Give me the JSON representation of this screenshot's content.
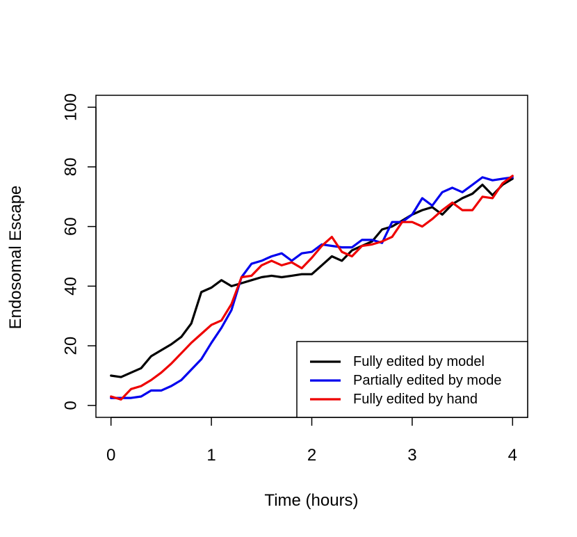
{
  "chart_data": {
    "type": "line",
    "title": "",
    "xlabel": "Time (hours)",
    "ylabel": "Endosomal Escape",
    "xlim": [
      -0.15,
      4.15
    ],
    "ylim": [
      -4,
      104
    ],
    "xticks": [
      0,
      1,
      2,
      3,
      4
    ],
    "yticks": [
      0,
      20,
      40,
      60,
      80,
      100
    ],
    "grid": false,
    "legend_position": "bottom-right",
    "series": [
      {
        "name": "Fully edited by model",
        "color": "#000000",
        "x": [
          0,
          0.1,
          0.2,
          0.3,
          0.4,
          0.5,
          0.6,
          0.7,
          0.8,
          0.9,
          1.0,
          1.1,
          1.2,
          1.3,
          1.4,
          1.5,
          1.6,
          1.7,
          1.8,
          1.9,
          2.0,
          2.1,
          2.2,
          2.3,
          2.4,
          2.5,
          2.6,
          2.7,
          2.8,
          2.9,
          3.0,
          3.1,
          3.2,
          3.3,
          3.4,
          3.5,
          3.6,
          3.7,
          3.8,
          3.9,
          4.0
        ],
        "y": [
          10,
          9.5,
          11,
          12.5,
          16.5,
          18.5,
          20.5,
          23,
          27.5,
          38,
          39.5,
          42,
          40,
          41,
          42,
          43,
          43.5,
          43,
          43.5,
          44,
          44,
          47,
          50,
          48.5,
          52,
          53.5,
          55,
          59,
          60,
          62,
          64,
          65.5,
          66.5,
          64,
          67.5,
          69.5,
          71,
          74,
          70.5,
          74,
          76
        ]
      },
      {
        "name": "Partially edited by mode",
        "color": "#0000ee",
        "x": [
          0,
          0.1,
          0.2,
          0.3,
          0.4,
          0.5,
          0.6,
          0.7,
          0.8,
          0.9,
          1.0,
          1.1,
          1.2,
          1.3,
          1.4,
          1.5,
          1.6,
          1.7,
          1.8,
          1.9,
          2.0,
          2.1,
          2.2,
          2.3,
          2.4,
          2.5,
          2.6,
          2.7,
          2.8,
          2.9,
          3.0,
          3.1,
          3.2,
          3.3,
          3.4,
          3.5,
          3.6,
          3.7,
          3.8,
          3.9,
          4.0
        ],
        "y": [
          2.5,
          2.5,
          2.5,
          3,
          5,
          5,
          6.5,
          8.5,
          12,
          15.5,
          21,
          26,
          32,
          43,
          47.5,
          48.5,
          50,
          51,
          48.5,
          51,
          51.5,
          54,
          53.5,
          53,
          53,
          55.5,
          55.5,
          54.5,
          61.5,
          61.5,
          64,
          69.5,
          67,
          71.5,
          73,
          71.5,
          74,
          76.5,
          75.5,
          76,
          76.5
        ]
      },
      {
        "name": "Fully edited by hand",
        "color": "#ee0000",
        "x": [
          0,
          0.1,
          0.2,
          0.3,
          0.4,
          0.5,
          0.6,
          0.7,
          0.8,
          0.9,
          1.0,
          1.1,
          1.2,
          1.3,
          1.4,
          1.5,
          1.6,
          1.7,
          1.8,
          1.9,
          2.0,
          2.1,
          2.2,
          2.3,
          2.4,
          2.5,
          2.6,
          2.7,
          2.8,
          2.9,
          3.0,
          3.1,
          3.2,
          3.3,
          3.4,
          3.5,
          3.6,
          3.7,
          3.8,
          3.9,
          4.0
        ],
        "y": [
          3,
          2,
          5.5,
          6.5,
          8.5,
          11,
          14,
          17.5,
          21,
          24,
          27,
          28.5,
          34,
          43,
          43.5,
          47,
          48.5,
          47,
          48,
          46,
          49.5,
          53.5,
          56.5,
          51.5,
          50,
          53.5,
          54,
          55,
          56.5,
          61.5,
          61.5,
          60,
          62.5,
          65.5,
          68,
          65.5,
          65.5,
          70,
          69.5,
          74.5,
          77
        ]
      }
    ]
  }
}
